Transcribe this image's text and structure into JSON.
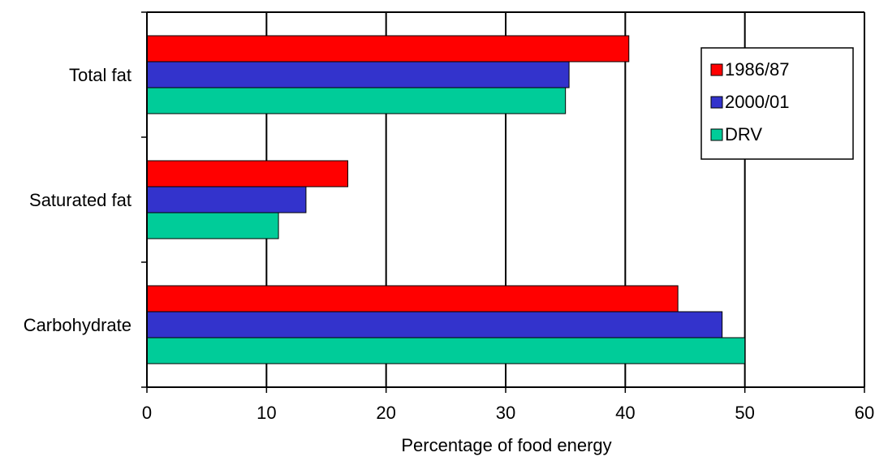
{
  "chart_data": {
    "type": "bar",
    "orientation": "horizontal",
    "title": "",
    "xlabel": "Percentage of food energy",
    "ylabel": "",
    "xlim": [
      0,
      60
    ],
    "xticks": [
      0,
      10,
      20,
      30,
      40,
      50,
      60
    ],
    "grid": true,
    "legend_position": "top-right",
    "categories": [
      "Total fat",
      "Saturated fat",
      "Carbohydrate"
    ],
    "series": [
      {
        "name": "1986/87",
        "color": "#ff0000",
        "values": [
          40.3,
          16.8,
          44.4
        ]
      },
      {
        "name": "2000/01",
        "color": "#3333cc",
        "values": [
          35.3,
          13.3,
          48.1
        ]
      },
      {
        "name": "DRV",
        "color": "#00cc99",
        "values": [
          35.0,
          11.0,
          50.0
        ]
      }
    ]
  }
}
